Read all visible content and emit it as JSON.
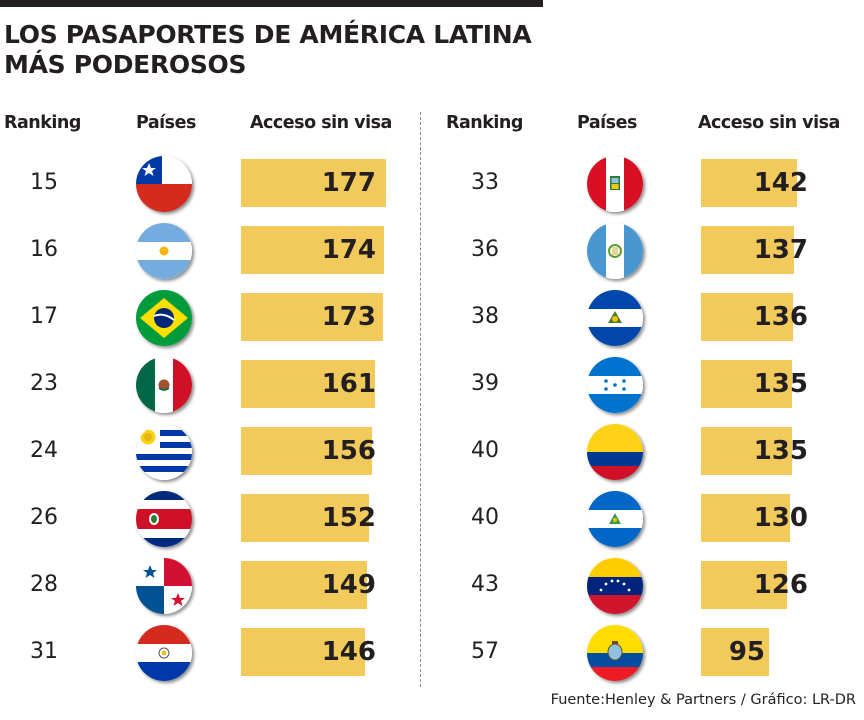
{
  "chart_data": {
    "type": "bar",
    "title": "LOS PASAPORTES DE  AMÉRICA LATINA\nMÁS PODEROSOS",
    "headers": {
      "ranking": "Ranking",
      "countries": "Países",
      "access": "Acceso sin visa"
    },
    "xlabel": "Países",
    "ylabel": "Acceso sin visa",
    "source": "Fuente:Henley & Partners / Gráfico: LR-DR",
    "colors": {
      "bar": "#f2c95b",
      "text": "#231f20"
    },
    "columns": [
      [
        {
          "rank": "15",
          "flag": "chile-flag-icon",
          "value": 177
        },
        {
          "rank": "16",
          "flag": "argentina-flag-icon",
          "value": 174
        },
        {
          "rank": "17",
          "flag": "brazil-flag-icon",
          "value": 173
        },
        {
          "rank": "23",
          "flag": "mexico-flag-icon",
          "value": 161
        },
        {
          "rank": "24",
          "flag": "uruguay-flag-icon",
          "value": 156
        },
        {
          "rank": "26",
          "flag": "costa-rica-flag-icon",
          "value": 152
        },
        {
          "rank": "28",
          "flag": "panama-flag-icon",
          "value": 149
        },
        {
          "rank": "31",
          "flag": "paraguay-flag-icon",
          "value": 146
        }
      ],
      [
        {
          "rank": "33",
          "flag": "peru-flag-icon",
          "value": 142
        },
        {
          "rank": "36",
          "flag": "guatemala-flag-icon",
          "value": 137
        },
        {
          "rank": "38",
          "flag": "el-salvador-flag-icon",
          "value": 136
        },
        {
          "rank": "39",
          "flag": "honduras-flag-icon",
          "value": 135
        },
        {
          "rank": "40",
          "flag": "colombia-flag-icon",
          "value": 135
        },
        {
          "rank": "40",
          "flag": "nicaragua-flag-icon",
          "value": 130
        },
        {
          "rank": "43",
          "flag": "venezuela-flag-icon",
          "value": 126
        },
        {
          "rank": "57",
          "flag": "ecuador-flag-icon",
          "value": 95
        }
      ]
    ]
  }
}
